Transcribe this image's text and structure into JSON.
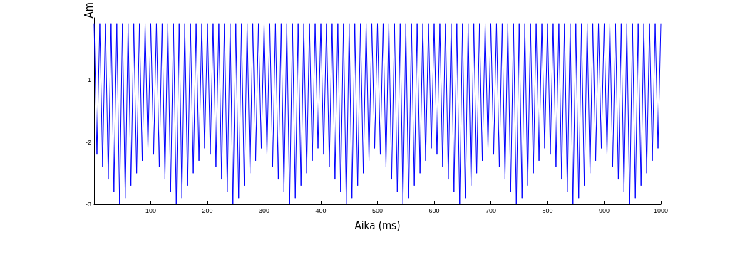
{
  "chart_data": {
    "type": "line",
    "xlabel": "Aika (ms)",
    "ylabel": "Am",
    "xlim": [
      0,
      1000
    ],
    "xticks": [
      100,
      200,
      300,
      400,
      500,
      600,
      700,
      800,
      900,
      1000
    ],
    "ylim": [
      -3,
      0
    ],
    "yticks": [
      -3,
      -2,
      -1
    ],
    "grid": false,
    "marker": "none",
    "line_style": "solid",
    "series": [
      {
        "color": "#0000ff",
        "x": [
          0,
          5,
          10,
          15,
          20,
          25,
          30,
          35,
          40,
          45,
          50,
          55,
          60,
          65,
          70,
          75,
          80,
          85,
          90,
          95,
          100,
          105,
          110,
          115,
          120,
          125,
          130,
          135,
          140,
          145,
          150,
          155,
          160,
          165,
          170,
          175,
          180,
          185,
          190,
          195,
          200,
          205,
          210,
          215,
          220,
          225,
          230,
          235,
          240,
          245,
          250,
          255,
          260,
          265,
          270,
          275,
          280,
          285,
          290,
          295,
          300,
          305,
          310,
          315,
          320,
          325,
          330,
          335,
          340,
          345,
          350,
          355,
          360,
          365,
          370,
          375,
          380,
          385,
          390,
          395,
          400,
          405,
          410,
          415,
          420,
          425,
          430,
          435,
          440,
          445,
          450,
          455,
          460,
          465,
          470,
          475,
          480,
          485,
          490,
          495,
          500,
          505,
          510,
          515,
          520,
          525,
          530,
          535,
          540,
          545,
          550,
          555,
          560,
          565,
          570,
          575,
          580,
          585,
          590,
          595,
          600,
          605,
          610,
          615,
          620,
          625,
          630,
          635,
          640,
          645,
          650,
          655,
          660,
          665,
          670,
          675,
          680,
          685,
          690,
          695,
          700,
          705,
          710,
          715,
          720,
          725,
          730,
          735,
          740,
          745,
          750,
          755,
          760,
          765,
          770,
          775,
          780,
          785,
          790,
          795,
          800,
          805,
          810,
          815,
          820,
          825,
          830,
          835,
          840,
          845,
          850,
          855,
          860,
          865,
          870,
          875,
          880,
          885,
          890,
          895,
          900,
          905,
          910,
          915,
          920,
          925,
          930,
          935,
          940,
          945,
          950,
          955,
          960,
          965,
          970,
          975,
          980,
          985,
          990,
          995,
          1000
        ],
        "values": [
          -0.1,
          -2.2,
          -0.1,
          -2.4,
          -0.1,
          -2.6,
          -0.1,
          -2.8,
          -0.1,
          -3,
          -0.1,
          -2.9,
          -0.1,
          -2.7,
          -0.1,
          -2.5,
          -0.1,
          -2.3,
          -0.1,
          -2.1,
          -0.1,
          -2.2,
          -0.1,
          -2.4,
          -0.1,
          -2.6,
          -0.1,
          -2.8,
          -0.1,
          -3,
          -0.1,
          -2.9,
          -0.1,
          -2.7,
          -0.1,
          -2.5,
          -0.1,
          -2.3,
          -0.1,
          -2.1,
          -0.1,
          -2.2,
          -0.1,
          -2.4,
          -0.1,
          -2.6,
          -0.1,
          -2.8,
          -0.1,
          -3,
          -0.1,
          -2.9,
          -0.1,
          -2.7,
          -0.1,
          -2.5,
          -0.1,
          -2.3,
          -0.1,
          -2.1,
          -0.1,
          -2.2,
          -0.1,
          -2.4,
          -0.1,
          -2.6,
          -0.1,
          -2.8,
          -0.1,
          -3,
          -0.1,
          -2.9,
          -0.1,
          -2.7,
          -0.1,
          -2.5,
          -0.1,
          -2.3,
          -0.1,
          -2.1,
          -0.1,
          -2.2,
          -0.1,
          -2.4,
          -0.1,
          -2.6,
          -0.1,
          -2.8,
          -0.1,
          -3,
          -0.1,
          -2.9,
          -0.1,
          -2.7,
          -0.1,
          -2.5,
          -0.1,
          -2.3,
          -0.1,
          -2.1,
          -0.1,
          -2.2,
          -0.1,
          -2.4,
          -0.1,
          -2.6,
          -0.1,
          -2.8,
          -0.1,
          -3,
          -0.1,
          -2.9,
          -0.1,
          -2.7,
          -0.1,
          -2.5,
          -0.1,
          -2.3,
          -0.1,
          -2.1,
          -0.1,
          -2.2,
          -0.1,
          -2.4,
          -0.1,
          -2.6,
          -0.1,
          -2.8,
          -0.1,
          -3,
          -0.1,
          -2.9,
          -0.1,
          -2.7,
          -0.1,
          -2.5,
          -0.1,
          -2.3,
          -0.1,
          -2.1,
          -0.1,
          -2.2,
          -0.1,
          -2.4,
          -0.1,
          -2.6,
          -0.1,
          -2.8,
          -0.1,
          -3,
          -0.1,
          -2.9,
          -0.1,
          -2.7,
          -0.1,
          -2.5,
          -0.1,
          -2.3,
          -0.1,
          -2.1,
          -0.1,
          -2.2,
          -0.1,
          -2.4,
          -0.1,
          -2.6,
          -0.1,
          -2.8,
          -0.1,
          -3,
          -0.1,
          -2.9,
          -0.1,
          -2.7,
          -0.1,
          -2.5,
          -0.1,
          -2.3,
          -0.1,
          -2.1,
          -0.1,
          -2.2,
          -0.1,
          -2.4,
          -0.1,
          -2.6,
          -0.1,
          -2.8,
          -0.1,
          -3,
          -0.1,
          -2.9,
          -0.1,
          -2.7,
          -0.1,
          -2.5,
          -0.1,
          -2.3,
          -0.1,
          -2.1,
          -0.1
        ]
      }
    ]
  }
}
